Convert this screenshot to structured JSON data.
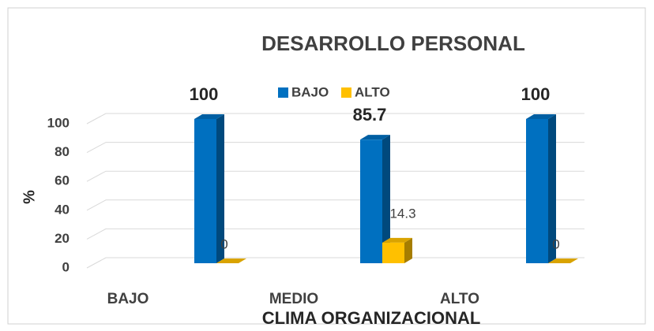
{
  "chart_data": {
    "type": "bar3d",
    "title": "DESARROLLO PERSONAL",
    "x_label": "CLIMA ORGANIZACIONAL",
    "y_label": "%",
    "categories": [
      "BAJO",
      "MEDIO",
      "ALTO"
    ],
    "series": [
      {
        "name": "BAJO",
        "color": "#0070c0",
        "values": [
          100,
          85.7,
          100
        ]
      },
      {
        "name": "ALTO",
        "color": "#ffc000",
        "values": [
          0,
          14.3,
          0
        ]
      }
    ],
    "ylim": [
      0,
      100
    ],
    "yticks": [
      0,
      20,
      40,
      60,
      80,
      100
    ],
    "grid": true,
    "legend": "top"
  }
}
